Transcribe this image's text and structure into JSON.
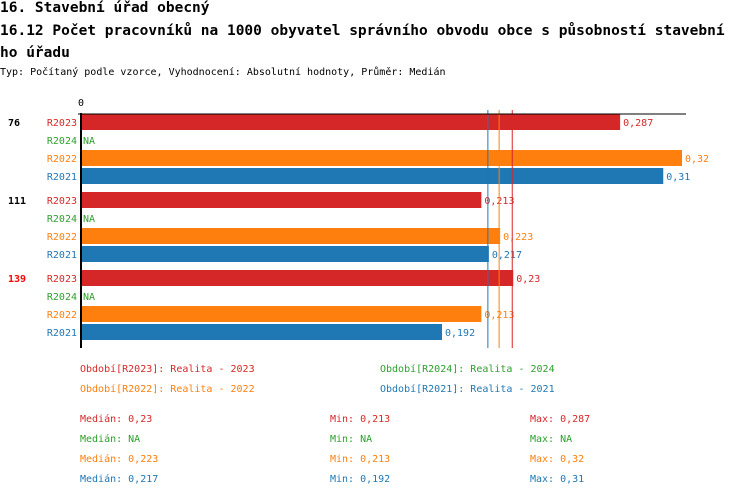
{
  "header": {
    "title": "16. Stavební úřad obecný",
    "subtitle": "16.12 Počet pracovníků na 1000 obyvatel správního obvodu obce s působností stavebního úřadu",
    "meta": "Typ: Počítaný podle vzorce, Vyhodnocení: Absolutní hodnoty, Průměr: Medián"
  },
  "colors": {
    "R2023": "#d62728",
    "R2024": "#2ca02c",
    "R2022": "#ff7f0e",
    "R2021": "#1f77b4",
    "highlight": "#ff0000"
  },
  "chart_data": {
    "type": "bar",
    "orientation": "horizontal",
    "xlim": [
      0,
      0.33
    ],
    "x_tick_labels": [
      "0"
    ],
    "series_order": [
      "R2023",
      "R2024",
      "R2022",
      "R2021"
    ],
    "groups": [
      {
        "label": "76",
        "highlight": false,
        "values": {
          "R2023": 0.287,
          "R2024": null,
          "R2022": 0.32,
          "R2021": 0.31
        },
        "value_labels": {
          "R2023": "0,287",
          "R2024": "NA",
          "R2022": "0,32",
          "R2021": "0,31"
        }
      },
      {
        "label": "111",
        "highlight": false,
        "values": {
          "R2023": 0.213,
          "R2024": null,
          "R2022": 0.223,
          "R2021": 0.217
        },
        "value_labels": {
          "R2023": "0,213",
          "R2024": "NA",
          "R2022": "0,223",
          "R2021": "0,217"
        }
      },
      {
        "label": "139",
        "highlight": true,
        "values": {
          "R2023": 0.23,
          "R2024": null,
          "R2022": 0.213,
          "R2021": 0.192
        },
        "value_labels": {
          "R2023": "0,23",
          "R2024": "NA",
          "R2022": "0,213",
          "R2021": "0,192"
        }
      }
    ],
    "median_lines": {
      "R2023": 0.23,
      "R2022": 0.223,
      "R2021": 0.217
    }
  },
  "legend": [
    {
      "key": "R2023",
      "text": "Období[R2023]: Realita - 2023"
    },
    {
      "key": "R2024",
      "text": "Období[R2024]: Realita - 2024"
    },
    {
      "key": "R2022",
      "text": "Období[R2022]: Realita - 2022"
    },
    {
      "key": "R2021",
      "text": "Období[R2021]: Realita - 2021"
    }
  ],
  "stats": [
    {
      "key": "R2023",
      "median": "Medián: 0,23",
      "min": "Min: 0,213",
      "max": "Max: 0,287"
    },
    {
      "key": "R2024",
      "median": "Medián: NA",
      "min": "Min: NA",
      "max": "Max: NA"
    },
    {
      "key": "R2022",
      "median": "Medián: 0,223",
      "min": "Min: 0,213",
      "max": "Max: 0,32"
    },
    {
      "key": "R2021",
      "median": "Medián: 0,217",
      "min": "Min: 0,192",
      "max": "Max: 0,31"
    }
  ]
}
